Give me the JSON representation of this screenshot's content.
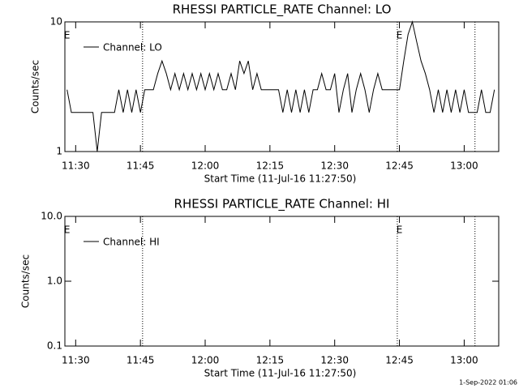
{
  "chart_data": [
    {
      "type": "line",
      "title": "RHESSI PARTICLE_RATE Channel: LO",
      "xlabel": "Start Time (11-Jul-16 11:27:50)",
      "ylabel": "Counts/sec",
      "log_y": true,
      "ylim": [
        1,
        10
      ],
      "yticks": [
        1,
        10
      ],
      "xlim": [
        "11:27:30",
        "13:08:00"
      ],
      "xticks": [
        "11:30",
        "11:45",
        "12:00",
        "12:15",
        "12:30",
        "12:45",
        "13:00"
      ],
      "vlines": [
        "11:45:30",
        "12:44:30",
        "13:02:30"
      ],
      "annotations": [
        {
          "x": "11:28",
          "text": "E"
        },
        {
          "x": "12:45",
          "text": "E"
        }
      ],
      "x": [
        "11:28",
        "11:29",
        "11:30",
        "11:31",
        "11:32",
        "11:33",
        "11:34",
        "11:35",
        "11:36",
        "11:37",
        "11:38",
        "11:39",
        "11:40",
        "11:41",
        "11:42",
        "11:43",
        "11:44",
        "11:45",
        "11:46",
        "11:47",
        "11:48",
        "11:49",
        "11:50",
        "11:51",
        "11:52",
        "11:53",
        "11:54",
        "11:55",
        "11:56",
        "11:57",
        "11:58",
        "11:59",
        "12:00",
        "12:01",
        "12:02",
        "12:03",
        "12:04",
        "12:05",
        "12:06",
        "12:07",
        "12:08",
        "12:09",
        "12:10",
        "12:11",
        "12:12",
        "12:13",
        "12:14",
        "12:15",
        "12:16",
        "12:17",
        "12:18",
        "12:19",
        "12:20",
        "12:21",
        "12:22",
        "12:23",
        "12:24",
        "12:25",
        "12:26",
        "12:27",
        "12:28",
        "12:29",
        "12:30",
        "12:31",
        "12:32",
        "12:33",
        "12:34",
        "12:35",
        "12:36",
        "12:37",
        "12:38",
        "12:39",
        "12:40",
        "12:41",
        "12:42",
        "12:43",
        "12:44",
        "12:45",
        "12:46",
        "12:47",
        "12:48",
        "12:49",
        "12:50",
        "12:51",
        "12:52",
        "12:53",
        "12:54",
        "12:55",
        "12:56",
        "12:57",
        "12:58",
        "12:59",
        "13:00",
        "13:01",
        "13:02",
        "13:03",
        "13:04",
        "13:05",
        "13:06",
        "13:07"
      ],
      "series": [
        {
          "name": "Channel: LO",
          "color": "#000000",
          "values": [
            3,
            2,
            2,
            2,
            2,
            2,
            2,
            1,
            2,
            2,
            2,
            2,
            3,
            2,
            3,
            2,
            3,
            2,
            3,
            3,
            3,
            4,
            5,
            4,
            3,
            4,
            3,
            4,
            3,
            4,
            3,
            4,
            3,
            4,
            3,
            4,
            3,
            3,
            4,
            3,
            5,
            4,
            5,
            3,
            4,
            3,
            3,
            3,
            3,
            3,
            2,
            3,
            2,
            3,
            2,
            3,
            2,
            3,
            3,
            4,
            3,
            3,
            4,
            2,
            3,
            4,
            2,
            3,
            4,
            3,
            2,
            3,
            4,
            3,
            3,
            3,
            3,
            3,
            5,
            8,
            10,
            7,
            5,
            4,
            3,
            2,
            3,
            2,
            3,
            2,
            3,
            2,
            3,
            2,
            2,
            2,
            3,
            2,
            2,
            3
          ]
        }
      ]
    },
    {
      "type": "line",
      "title": "RHESSI PARTICLE_RATE Channel: HI",
      "xlabel": "Start Time (11-Jul-16 11:27:50)",
      "ylabel": "Counts/sec",
      "log_y": true,
      "ylim": [
        0.1,
        10
      ],
      "yticks": [
        0.1,
        {
          "value": 1,
          "label": "1.0"
        },
        {
          "value": 10,
          "label": "10.0"
        }
      ],
      "xlim": [
        "11:27:30",
        "13:08:00"
      ],
      "xticks": [
        "11:30",
        "11:45",
        "12:00",
        "12:15",
        "12:30",
        "12:45",
        "13:00"
      ],
      "vlines": [
        "11:45:30",
        "12:44:30",
        "13:02:30"
      ],
      "annotations": [
        {
          "x": "11:28",
          "text": "E"
        },
        {
          "x": "12:45",
          "text": "E"
        }
      ],
      "x": [],
      "series": [
        {
          "name": "Channel: HI",
          "color": "#000000",
          "values": []
        }
      ]
    }
  ],
  "footer": "1-Sep-2022 01:06"
}
